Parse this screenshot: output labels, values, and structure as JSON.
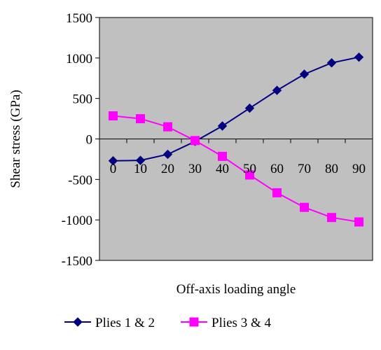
{
  "chart_data": {
    "type": "line",
    "xlabel": "Off-axis loading angle",
    "ylabel": "Shear stress (GPa)",
    "x": [
      0,
      10,
      20,
      30,
      40,
      50,
      60,
      70,
      80,
      90
    ],
    "x_tick_labels": [
      "0",
      "10",
      "20",
      "30",
      "40",
      "50",
      "60",
      "70",
      "80",
      "90"
    ],
    "ylim": [
      -1500,
      1500
    ],
    "y_ticks": [
      1500,
      1000,
      500,
      0,
      -500,
      -1000,
      -1500
    ],
    "y_tick_labels": [
      "1500",
      "1000",
      "500",
      "0",
      "-500",
      "-1000",
      "-1500"
    ],
    "grid": false,
    "plot_background": "#c0c0c0",
    "legend_position": "bottom",
    "series": [
      {
        "name": "Plies 1 & 2",
        "color": "#000080",
        "marker": "diamond",
        "values": [
          -270,
          -265,
          -190,
          -30,
          160,
          380,
          600,
          800,
          940,
          1010
        ]
      },
      {
        "name": "Plies 3 & 4",
        "color": "#ff00ff",
        "marker": "square",
        "values": [
          285,
          250,
          150,
          -20,
          -215,
          -445,
          -665,
          -845,
          -970,
          -1025
        ]
      }
    ]
  }
}
